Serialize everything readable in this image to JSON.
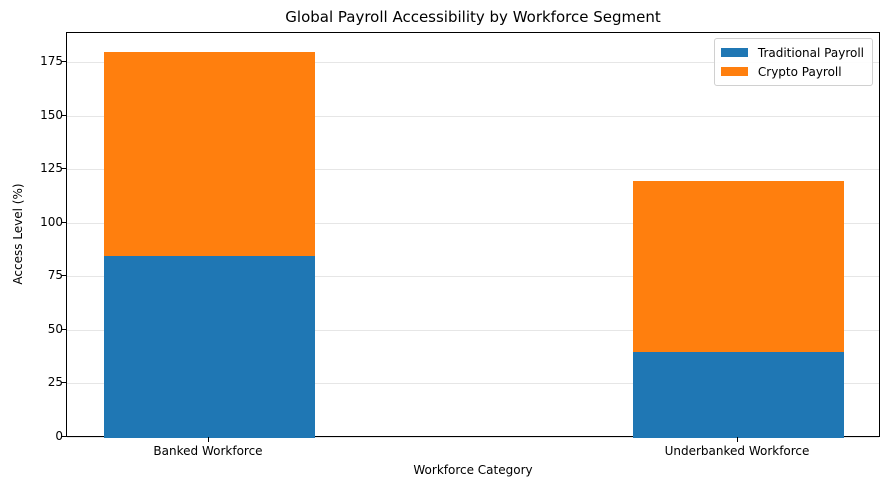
{
  "chart_data": {
    "type": "bar",
    "stacked": true,
    "title": "Global Payroll Accessibility by Workforce Segment",
    "xlabel": "Workforce Category",
    "ylabel": "Access Level (%)",
    "categories": [
      "Banked Workforce",
      "Underbanked Workforce"
    ],
    "series": [
      {
        "name": "Traditional Payroll",
        "values": [
          85,
          40
        ],
        "color": "#1f77b4"
      },
      {
        "name": "Crypto Payroll",
        "values": [
          95,
          80
        ],
        "color": "#ff7f0e"
      }
    ],
    "ylim": [
      0,
      189
    ],
    "yticks": [
      0,
      25,
      50,
      75,
      100,
      125,
      150,
      175
    ],
    "grid": true,
    "legend_position": "upper right"
  }
}
